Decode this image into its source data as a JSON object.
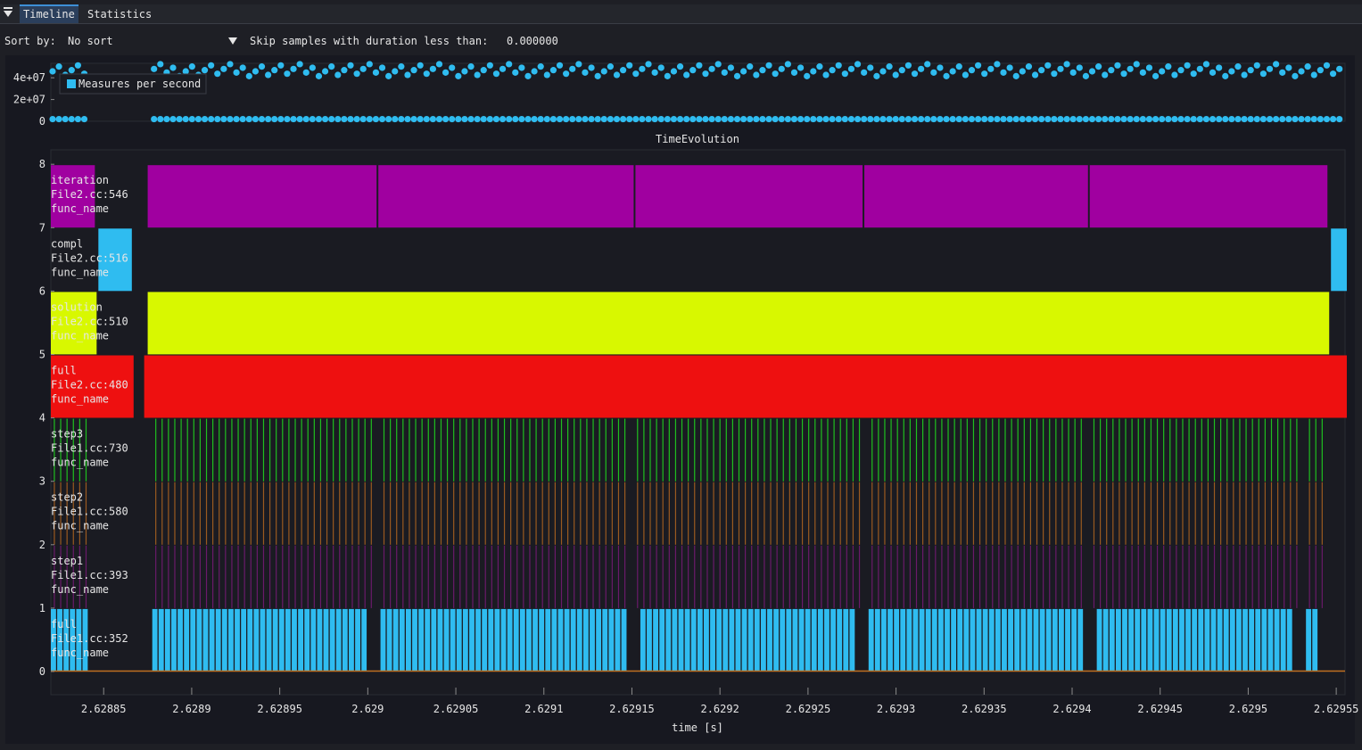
{
  "tabs": [
    {
      "label": "Timeline",
      "active": true
    },
    {
      "label": "Statistics",
      "active": false
    }
  ],
  "toolbar": {
    "sort_label": "Sort by:",
    "sort_value": "No sort",
    "skip_label": "Skip samples with duration less than:",
    "skip_value": "0.000000"
  },
  "colors": {
    "background": "#1e1f25",
    "plot_bg": "#171820",
    "measure": "#2fbcf0",
    "iteration": "#a000a0",
    "compl": "#2fbcf0",
    "solution": "#d8f800",
    "full_file2": "#ee1010",
    "step3": "#1fbf1f",
    "step2": "#9a5a20",
    "step1": "#6a1a6a",
    "full_file1": "#2fbcf0",
    "baseline": "#c07020"
  },
  "chart_data": [
    {
      "type": "scatter",
      "title": "",
      "legend": [
        "Measures per second"
      ],
      "legend_position": "top-left",
      "yticks": [
        "4e+07",
        "2e+07",
        "0"
      ],
      "ylim": [
        0,
        50000000
      ],
      "series": [
        {
          "name": "Measures per second",
          "description_levels": [
            47000000,
            2000000
          ]
        }
      ]
    },
    {
      "type": "timeline",
      "title": "TimeEvolution",
      "xlabel": "time [s]",
      "xlim": [
        2.62882,
        2.629555
      ],
      "xticks": [
        "2.62885",
        "2.6289",
        "2.62895",
        "2.629",
        "2.62905",
        "2.6291",
        "2.62915",
        "2.6292",
        "2.62925",
        "2.6293",
        "2.62935",
        "2.6294",
        "2.62945",
        "2.6295",
        "2.62955"
      ],
      "xtick_values": [
        2.62885,
        2.6289,
        2.62895,
        2.629,
        2.62905,
        2.6291,
        2.62915,
        2.6292,
        2.62925,
        2.6293,
        2.62935,
        2.6294,
        2.62945,
        2.6295,
        2.62955
      ],
      "yticks": [
        "8",
        "7",
        "6",
        "5",
        "4",
        "3",
        "2",
        "1",
        "0"
      ],
      "ylim": [
        0,
        8
      ],
      "rows": [
        {
          "level": 7,
          "name": "iteration",
          "file": "File2.cc:546",
          "func": "func_name",
          "intervals": [
            [
              2.62882,
              2.628845
            ],
            [
              2.628875,
              2.629005
            ],
            [
              2.629006,
              2.629151
            ],
            [
              2.629152,
              2.629281
            ],
            [
              2.629282,
              2.629409
            ],
            [
              2.62941,
              2.629545
            ]
          ]
        },
        {
          "level": 6,
          "name": "compl",
          "file": "File2.cc:516",
          "func": "func_name",
          "intervals": [
            [
              2.628847,
              2.628866
            ],
            [
              2.629547,
              2.629556
            ]
          ]
        },
        {
          "level": 5,
          "name": "solution",
          "file": "File2.cc:510",
          "func": "func_name",
          "intervals": [
            [
              2.62882,
              2.628846
            ],
            [
              2.628875,
              2.629546
            ]
          ]
        },
        {
          "level": 4,
          "name": "full",
          "file": "File2.cc:480",
          "func": "func_name",
          "intervals": [
            [
              2.62882,
              2.628867
            ],
            [
              2.628873,
              2.629556
            ]
          ]
        },
        {
          "level": 3,
          "name": "step3",
          "file": "File1.cc:730",
          "func": "func_name"
        },
        {
          "level": 2,
          "name": "step2",
          "file": "File1.cc:580",
          "func": "func_name"
        },
        {
          "level": 1,
          "name": "step1",
          "file": "File1.cc:393",
          "func": "func_name"
        },
        {
          "level": 0,
          "name": "full",
          "file": "File1.cc:352",
          "func": "func_name",
          "gaps": [
            [
              2.628844,
              2.628875
            ],
            [
              2.629002,
              2.629006
            ],
            [
              2.629149,
              2.629153
            ],
            [
              2.62928,
              2.629284
            ],
            [
              2.629407,
              2.629411
            ],
            [
              2.629528,
              2.629532
            ],
            [
              2.629542,
              2.629556
            ]
          ]
        }
      ]
    }
  ]
}
